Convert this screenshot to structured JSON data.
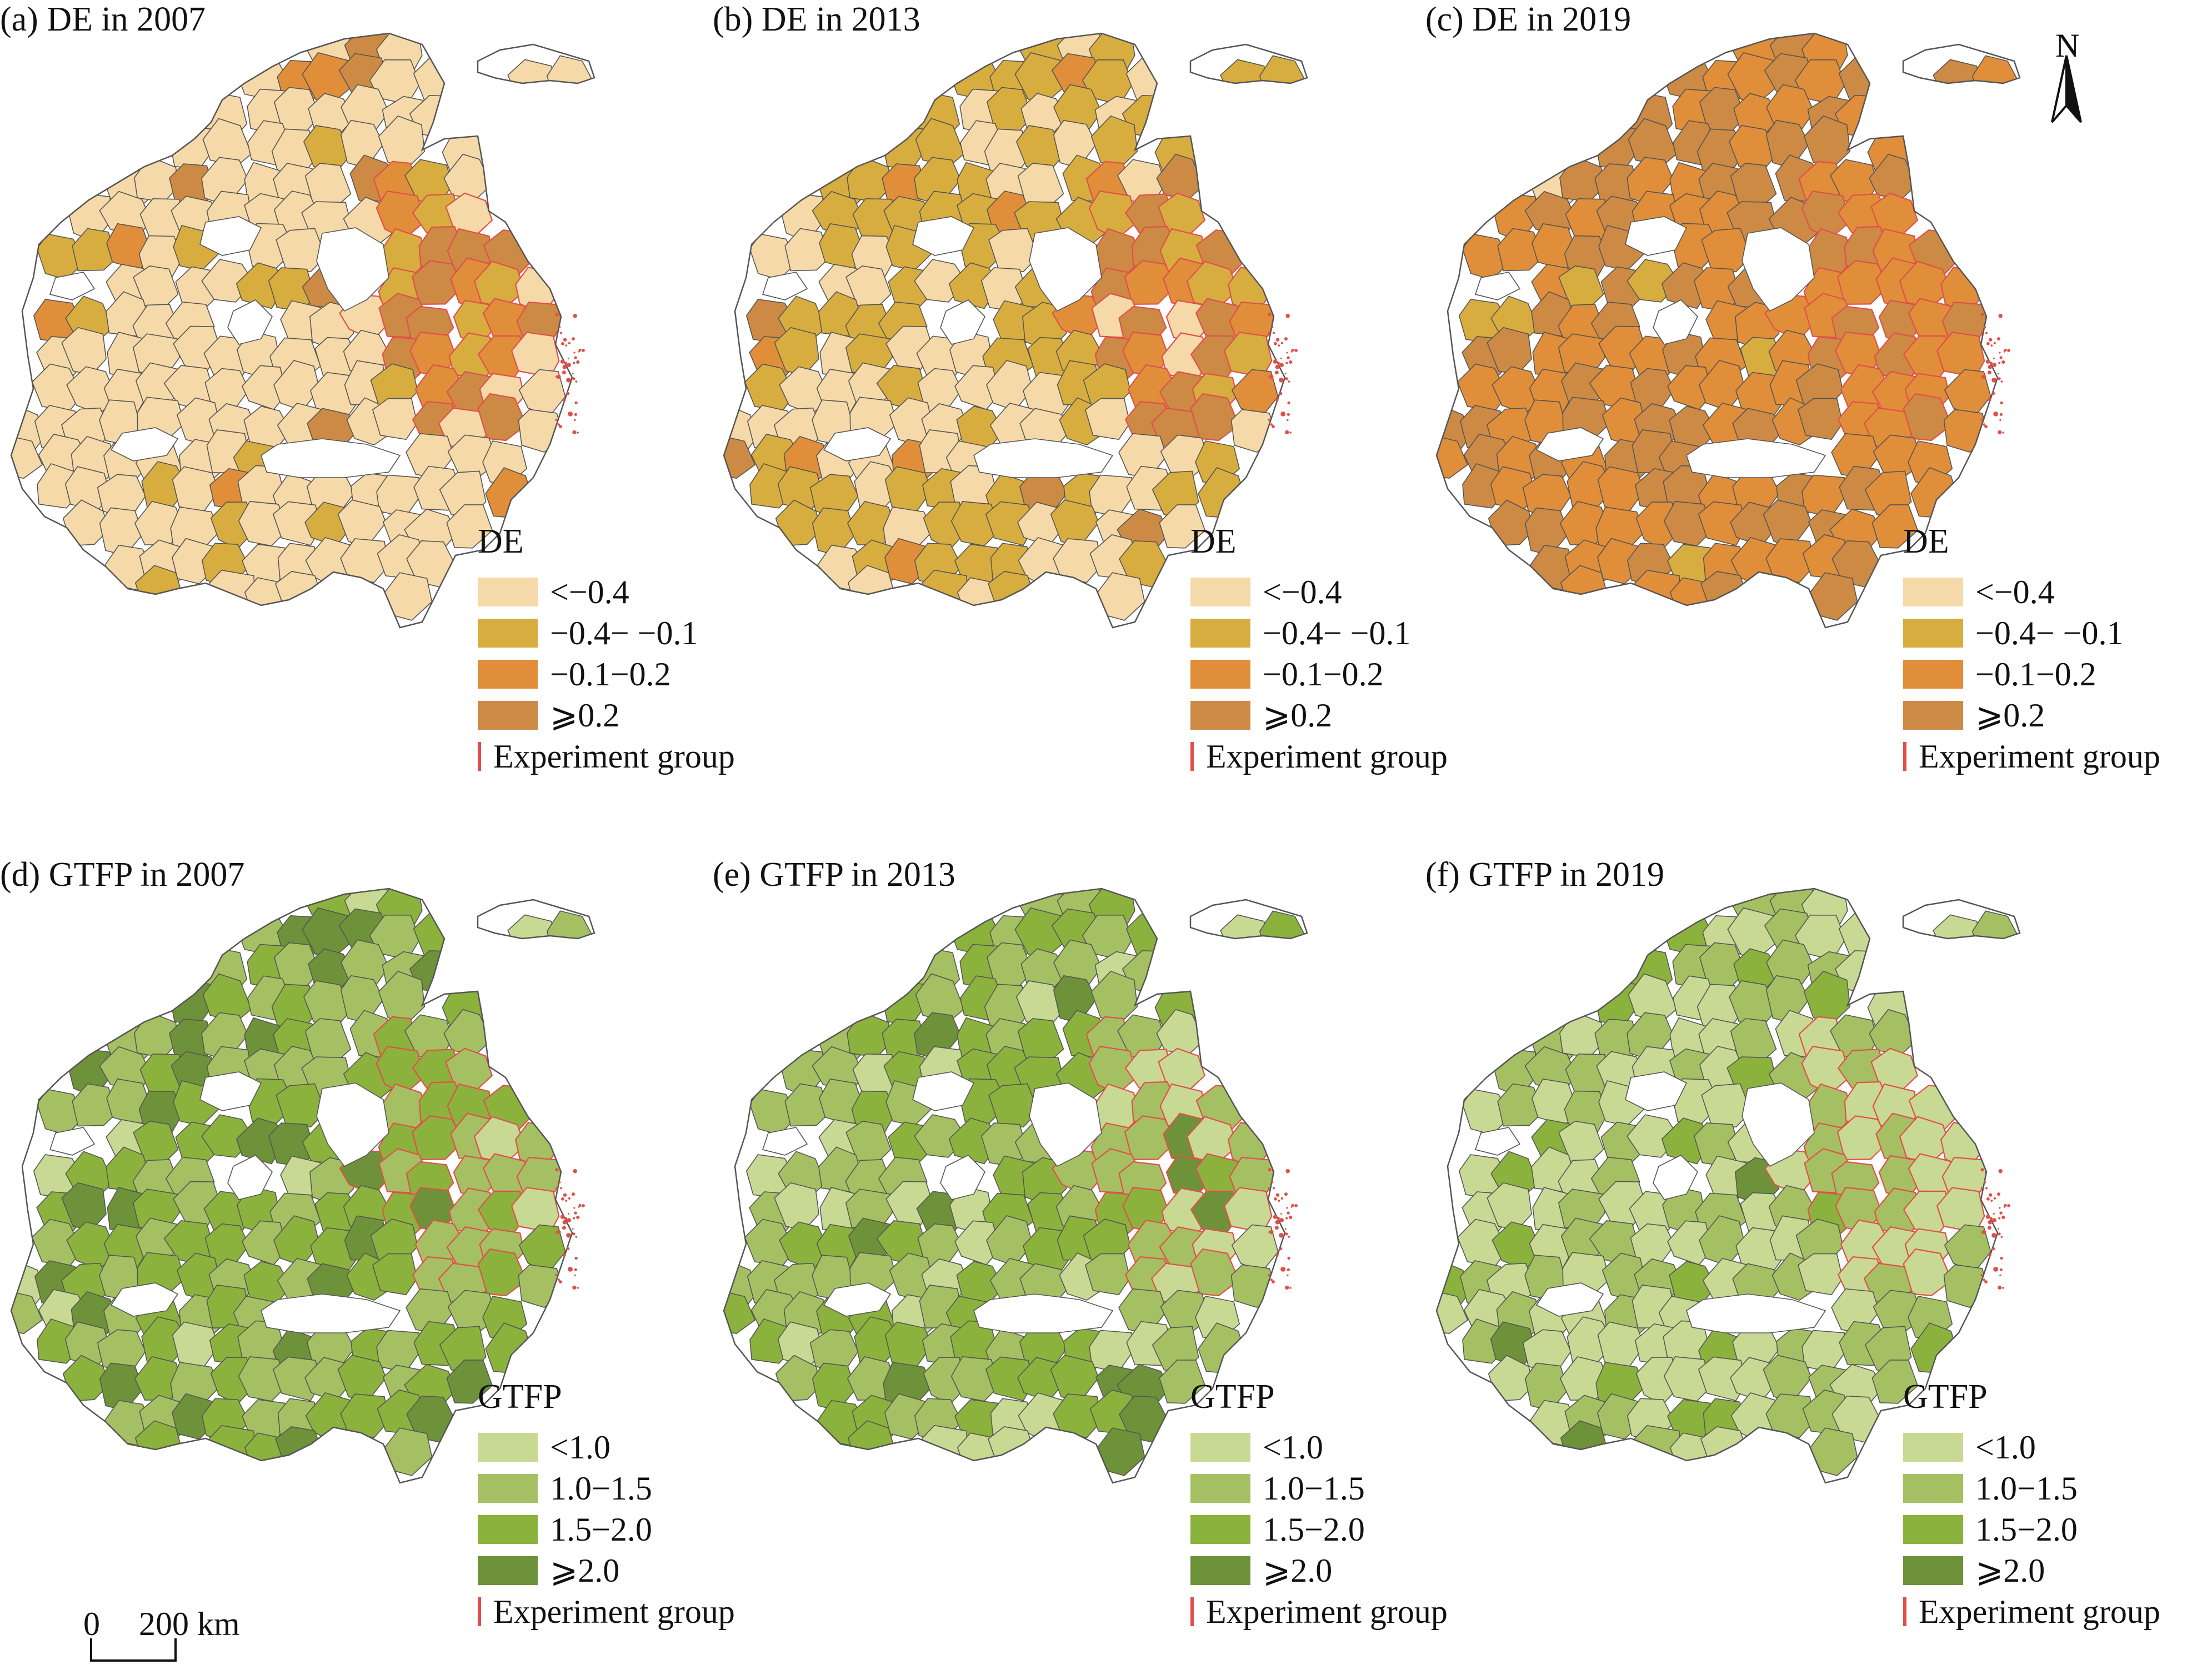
{
  "panels": [
    {
      "id": "a",
      "title": "(a) DE in 2007",
      "variable": "DE",
      "palette": "de",
      "fill_weights": [
        0.8,
        0.14,
        0.02,
        0.04
      ],
      "experiment_fill": [
        0.1,
        0.35,
        0.3,
        0.25
      ]
    },
    {
      "id": "b",
      "title": "(b) DE in 2013",
      "variable": "DE",
      "palette": "de",
      "fill_weights": [
        0.4,
        0.5,
        0.06,
        0.04
      ],
      "experiment_fill": [
        0.05,
        0.3,
        0.3,
        0.35
      ]
    },
    {
      "id": "c",
      "title": "(c) DE in 2019",
      "variable": "DE",
      "palette": "de",
      "fill_weights": [
        0.01,
        0.04,
        0.55,
        0.4
      ],
      "experiment_fill": [
        0.0,
        0.02,
        0.6,
        0.38
      ]
    },
    {
      "id": "d",
      "title": "(d) GTFP in 2007",
      "variable": "GTFP",
      "palette": "gtfp",
      "fill_weights": [
        0.1,
        0.3,
        0.42,
        0.18
      ],
      "experiment_fill": [
        0.15,
        0.35,
        0.4,
        0.1
      ]
    },
    {
      "id": "e",
      "title": "(e) GTFP in 2013",
      "variable": "GTFP",
      "palette": "gtfp",
      "fill_weights": [
        0.18,
        0.4,
        0.37,
        0.05
      ],
      "experiment_fill": [
        0.25,
        0.45,
        0.25,
        0.05
      ]
    },
    {
      "id": "f",
      "title": "(f) GTFP in 2019",
      "variable": "GTFP",
      "palette": "gtfp",
      "fill_weights": [
        0.45,
        0.42,
        0.1,
        0.03
      ],
      "experiment_fill": [
        0.55,
        0.35,
        0.08,
        0.02
      ]
    }
  ],
  "legends": {
    "de": {
      "title": "DE",
      "classes": [
        {
          "label": "<−0.4",
          "color": "#f5d9a8"
        },
        {
          "label": "−0.4− −0.1",
          "color": "#d8ad3f"
        },
        {
          "label": "−0.1−0.2",
          "color": "#e08e3a"
        },
        {
          "label": "⩾0.2",
          "color": "#cc8a45"
        }
      ],
      "experiment_label": "Experiment group"
    },
    "gtfp": {
      "title": "GTFP",
      "classes": [
        {
          "label": "<1.0",
          "color": "#c8d994"
        },
        {
          "label": "1.0−1.5",
          "color": "#a5c063"
        },
        {
          "label": "1.5−2.0",
          "color": "#8cb23e"
        },
        {
          "label": "⩾2.0",
          "color": "#6e923a"
        }
      ],
      "experiment_label": "Experiment group"
    }
  },
  "colors": {
    "boundary": "#555555",
    "experiment_boundary": "#e0504a",
    "island": "#e0504a"
  },
  "north_arrow": {
    "label": "N",
    "icon": "north-arrow-icon"
  },
  "scale_bar": {
    "zero": "0",
    "distance": "200 km",
    "icon": "scale-bar-icon"
  }
}
